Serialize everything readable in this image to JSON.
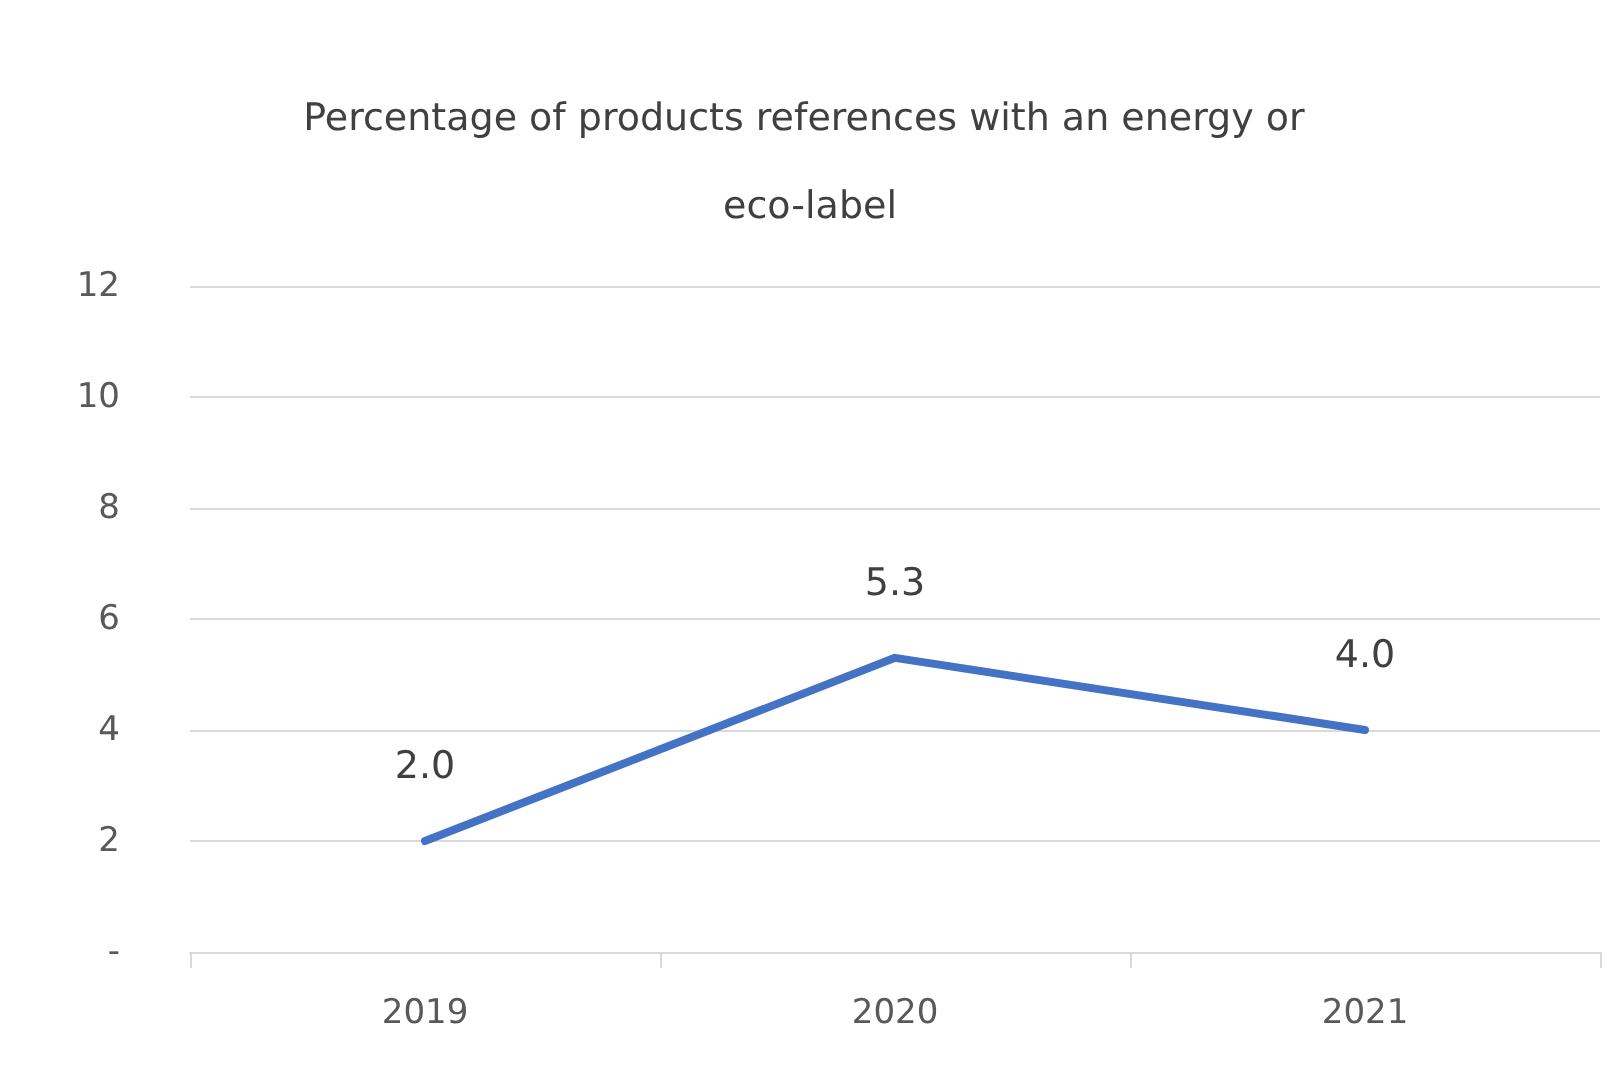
{
  "chart_data": {
    "type": "line",
    "title": "Percentage of products references with an energy or eco-label",
    "categories": [
      "2019",
      "2020",
      "2021"
    ],
    "series": [
      {
        "color": "#4472c4",
        "values": [
          2.0,
          5.3,
          4.0
        ],
        "value_labels": [
          "2.0",
          "5.3",
          "4.0"
        ]
      }
    ],
    "ylim": [
      0,
      12
    ],
    "yticks": [
      {
        "value": 0,
        "label": "-"
      },
      2,
      4,
      6,
      8,
      10,
      12
    ],
    "grid": "y",
    "marker": "none",
    "line_style": "solid"
  }
}
